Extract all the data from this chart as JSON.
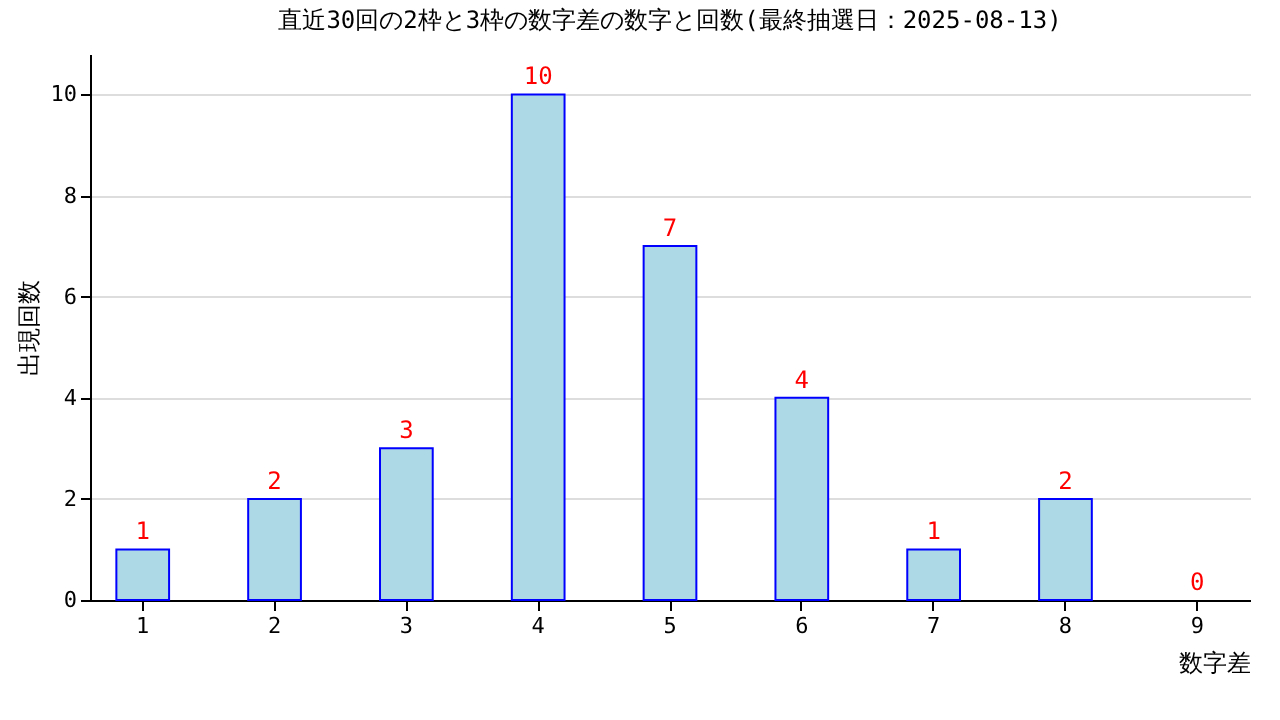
{
  "chart_data": {
    "type": "bar",
    "title": "直近30回の2枠と3枠の数字差の数字と回数(最終抽選日：2025-08-13)",
    "xlabel": "数字差",
    "ylabel": "出現回数",
    "categories": [
      "1",
      "2",
      "3",
      "4",
      "5",
      "6",
      "7",
      "8",
      "9"
    ],
    "values": [
      1,
      2,
      3,
      10,
      7,
      4,
      1,
      2,
      0
    ],
    "color": "#add8e6",
    "ylim": [
      0,
      10.8
    ],
    "yticks": [
      0,
      2,
      4,
      6,
      8,
      10
    ],
    "grid": "y",
    "data_labels": true
  }
}
